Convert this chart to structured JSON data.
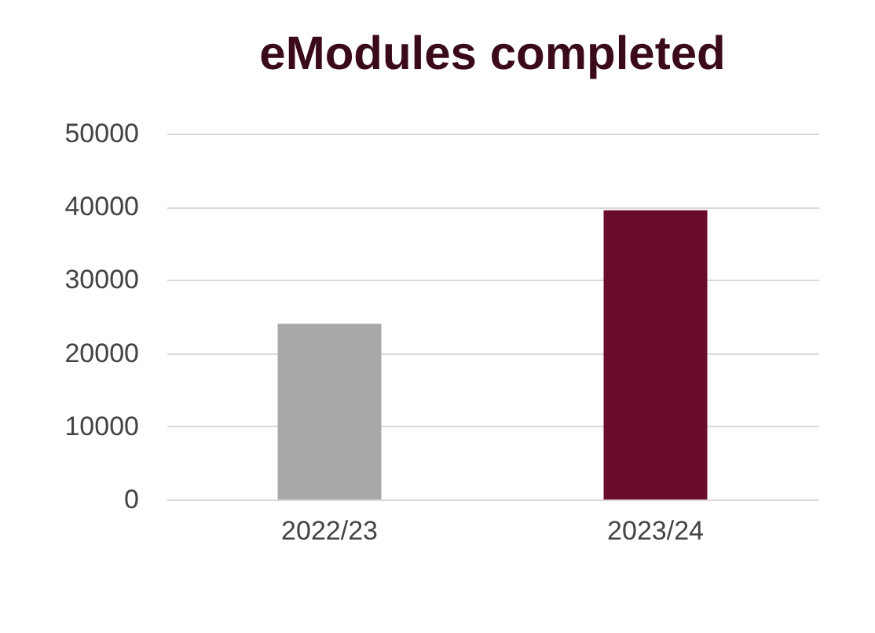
{
  "chart_data": {
    "type": "bar",
    "title": "eModules completed",
    "categories": [
      "2022/23",
      "2023/24"
    ],
    "values": [
      24000,
      39500
    ],
    "colors": [
      "#a8a9ab",
      "#6a0d2c"
    ],
    "ylim": [
      0,
      50000
    ],
    "yticks": [
      0,
      10000,
      20000,
      30000,
      40000,
      50000
    ],
    "grid": "y"
  }
}
